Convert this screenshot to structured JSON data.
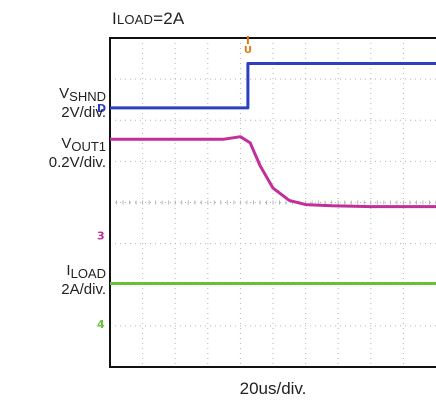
{
  "title": {
    "prefix": "I",
    "subscript": "LOAD",
    "value": "=2A"
  },
  "labels": {
    "vshnd": {
      "name": "V",
      "sub": "SHND",
      "scale": "2V/div."
    },
    "vout1": {
      "name": "V",
      "sub": "OUT1",
      "scale": "0.2V/div."
    },
    "iload": {
      "name": "I",
      "sub": "LOAD",
      "scale": "2A/div."
    }
  },
  "timebase": "20us/div.",
  "markers": [
    "D",
    "3",
    "4"
  ],
  "trigger_marker": "U",
  "colors": {
    "vshnd": "#2b3fbf",
    "vout1": "#c02f9a",
    "iload": "#6abf3a",
    "trigger": "#e07a10",
    "grid": "#b5b5b5",
    "frame": "#111111"
  },
  "chart_data": {
    "type": "line",
    "title": "ILOAD=2A",
    "xlabel": "20us/div.",
    "xlim": [
      0,
      10
    ],
    "ylim": [
      0,
      8
    ],
    "grid": true,
    "series": [
      {
        "name": "VSHND",
        "unit": "2V/div.",
        "x": [
          0,
          4.23,
          4.23,
          10
        ],
        "y": [
          6.3,
          6.3,
          7.38,
          7.38
        ]
      },
      {
        "name": "VOUT1",
        "unit": "0.2V/div.",
        "x": [
          0,
          3.5,
          4.0,
          4.3,
          4.6,
          5.0,
          5.5,
          6.0,
          6.8,
          8.0,
          10
        ],
        "y": [
          5.54,
          5.54,
          5.6,
          5.45,
          4.9,
          4.35,
          4.05,
          3.95,
          3.92,
          3.9,
          3.9
        ]
      },
      {
        "name": "ILOAD",
        "unit": "2A/div.",
        "x": [
          0,
          10
        ],
        "y": [
          2.03,
          2.03
        ]
      }
    ]
  }
}
